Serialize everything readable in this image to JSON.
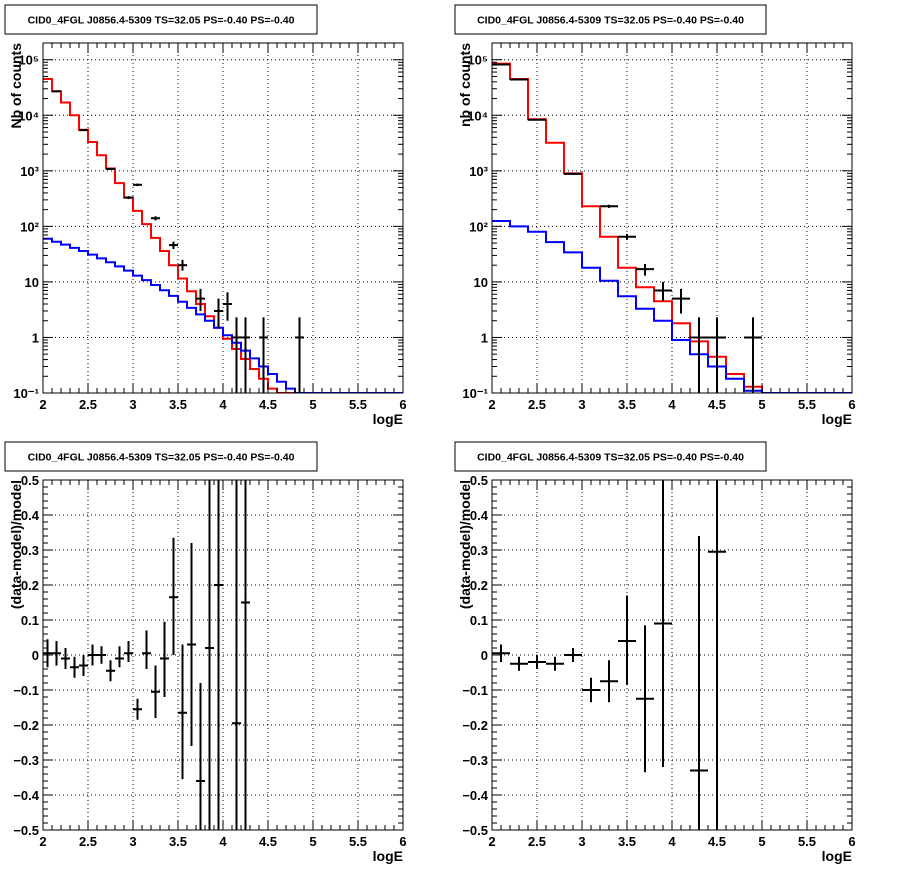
{
  "chart_data": [
    {
      "type": "histogram",
      "title": "CID0_4FGL J0856.4-5309 TS=32.05 PS=-0.40 PS=-0.40",
      "xlabel": "logE",
      "ylabel": "Nb of counts",
      "xlim": [
        2,
        6
      ],
      "ylim": [
        0.1,
        200000
      ],
      "yscale": "log",
      "grid": true,
      "xticks": [
        2,
        2.5,
        3,
        3.5,
        4,
        4.5,
        5,
        5.5,
        6
      ],
      "xtick_labels": [
        "2",
        "2.5",
        "3",
        "3.5",
        "4",
        "4.5",
        "5",
        "5.5",
        "6"
      ],
      "yticks": [
        0.1,
        1,
        10,
        100,
        1000,
        10000,
        100000
      ],
      "ytick_labels": [
        "10⁻¹",
        "1",
        "10",
        "10²",
        "10³",
        "10⁴",
        "10⁵"
      ],
      "bin_edges": [
        2.0,
        2.1,
        2.2,
        2.3,
        2.4,
        2.5,
        2.6,
        2.7,
        2.8,
        2.9,
        3.0,
        3.1,
        3.2,
        3.3,
        3.4,
        3.5,
        3.6,
        3.7,
        3.8,
        3.9,
        4.0,
        4.1,
        4.2,
        4.3,
        4.4,
        4.5,
        4.6,
        4.7,
        4.8,
        4.9,
        5.0,
        5.1,
        5.2,
        5.3,
        5.4,
        5.5,
        5.6,
        5.7,
        5.8,
        5.9,
        6.0
      ],
      "series": [
        {
          "color": "#ff0000",
          "style": "step",
          "values": [
            45000,
            27000,
            17000,
            10000,
            5500,
            3300,
            1900,
            1100,
            600,
            330,
            190,
            110,
            62,
            36,
            20,
            11.5,
            6.8,
            4,
            2.4,
            1.5,
            0.95,
            0.62,
            0.41,
            0.27,
            0.18,
            0.12,
            0.1,
            0.1,
            0.1,
            0.1,
            0.1,
            0.1,
            0.1,
            0.1,
            0.1,
            0.1,
            0.1,
            0.1,
            0.1,
            0.1
          ]
        },
        {
          "color": "#0000ff",
          "style": "step",
          "values": [
            60,
            53,
            47,
            41,
            36,
            31,
            26.5,
            22.5,
            19,
            16,
            13,
            10.8,
            8.8,
            7.1,
            5.6,
            4.4,
            3.4,
            2.6,
            2,
            1.5,
            1.1,
            0.8,
            0.58,
            0.42,
            0.3,
            0.22,
            0.16,
            0.12,
            0.1,
            0.1,
            0.1,
            0.1,
            0.1,
            0.1,
            0.1,
            0.1,
            0.1,
            0.1,
            0.1,
            0.1
          ]
        },
        {
          "color": "#000000",
          "style": "errorbar",
          "points": [
            {
              "x": 2.15,
              "y": 27000,
              "lo": 26500,
              "hi": 27500,
              "dx": 0.05
            },
            {
              "x": 2.45,
              "y": 5400,
              "lo": 5300,
              "hi": 5500,
              "dx": 0.05
            },
            {
              "x": 2.75,
              "y": 1080,
              "lo": 1040,
              "hi": 1120,
              "dx": 0.05
            },
            {
              "x": 2.95,
              "y": 330,
              "lo": 310,
              "hi": 350,
              "dx": 0.05
            },
            {
              "x": 3.05,
              "y": 560,
              "lo": 530,
              "hi": 590,
              "dx": 0.05
            },
            {
              "x": 3.25,
              "y": 140,
              "lo": 128,
              "hi": 152,
              "dx": 0.05
            },
            {
              "x": 3.45,
              "y": 46,
              "lo": 39,
              "hi": 53,
              "dx": 0.05
            },
            {
              "x": 3.55,
              "y": 20,
              "lo": 16,
              "hi": 25,
              "dx": 0.05
            },
            {
              "x": 3.75,
              "y": 5,
              "lo": 3,
              "hi": 7.5,
              "dx": 0.05
            },
            {
              "x": 3.95,
              "y": 3,
              "lo": 1.5,
              "hi": 5,
              "dx": 0.05
            },
            {
              "x": 4.05,
              "y": 4,
              "lo": 2,
              "hi": 6.5,
              "dx": 0.05
            },
            {
              "x": 4.15,
              "y": 1,
              "lo": 0.1,
              "hi": 2.3,
              "dx": 0.05
            },
            {
              "x": 4.25,
              "y": 1,
              "lo": 0.1,
              "hi": 2.3,
              "dx": 0.05
            },
            {
              "x": 4.45,
              "y": 1,
              "lo": 0.1,
              "hi": 2.3,
              "dx": 0.05
            },
            {
              "x": 4.85,
              "y": 1,
              "lo": 0.1,
              "hi": 2.3,
              "dx": 0.05
            }
          ]
        }
      ]
    },
    {
      "type": "histogram",
      "title": "CID0_4FGL J0856.4-5309 TS=32.05 PS=-0.40 PS=-0.40",
      "xlabel": "logE",
      "ylabel": "nb of counts",
      "xlim": [
        2,
        6
      ],
      "ylim": [
        0.1,
        200000
      ],
      "yscale": "log",
      "grid": true,
      "xticks": [
        2,
        2.5,
        3,
        3.5,
        4,
        4.5,
        5,
        5.5,
        6
      ],
      "xtick_labels": [
        "2",
        "2.5",
        "3",
        "3.5",
        "4",
        "4.5",
        "5",
        "5.5",
        "6"
      ],
      "yticks": [
        0.1,
        1,
        10,
        100,
        1000,
        10000,
        100000
      ],
      "ytick_labels": [
        "10⁻¹",
        "1",
        "10",
        "10²",
        "10³",
        "10⁴",
        "10⁵"
      ],
      "bin_edges": [
        2.0,
        2.2,
        2.4,
        2.6,
        2.8,
        3.0,
        3.2,
        3.4,
        3.6,
        3.8,
        4.0,
        4.2,
        4.4,
        4.6,
        4.8,
        5.0,
        5.2,
        5.4,
        5.6,
        5.8,
        6.0
      ],
      "series": [
        {
          "color": "#ff0000",
          "style": "step",
          "values": [
            85000,
            45000,
            8500,
            3200,
            900,
            230,
            65,
            18,
            8,
            4.5,
            1.8,
            0.85,
            0.45,
            0.22,
            0.13,
            0.1,
            0.1,
            0.1,
            0.1,
            0.1
          ]
        },
        {
          "color": "#0000ff",
          "style": "step",
          "values": [
            125,
            100,
            80,
            52,
            34,
            18,
            10.5,
            5.5,
            3.3,
            2,
            0.9,
            0.5,
            0.3,
            0.18,
            0.11,
            0.1,
            0.1,
            0.1,
            0.1,
            0.1
          ]
        },
        {
          "color": "#000000",
          "style": "errorbar",
          "points": [
            {
              "x": 2.1,
              "y": 82000,
              "lo": 81000,
              "hi": 83000,
              "dx": 0.1
            },
            {
              "x": 2.3,
              "y": 44000,
              "lo": 43500,
              "hi": 44500,
              "dx": 0.1
            },
            {
              "x": 2.5,
              "y": 8300,
              "lo": 8100,
              "hi": 8500,
              "dx": 0.1
            },
            {
              "x": 2.9,
              "y": 880,
              "lo": 850,
              "hi": 910,
              "dx": 0.1
            },
            {
              "x": 3.3,
              "y": 230,
              "lo": 215,
              "hi": 245,
              "dx": 0.1
            },
            {
              "x": 3.5,
              "y": 65,
              "lo": 57,
              "hi": 73,
              "dx": 0.1
            },
            {
              "x": 3.7,
              "y": 17,
              "lo": 13,
              "hi": 21,
              "dx": 0.1
            },
            {
              "x": 3.9,
              "y": 7,
              "lo": 4.5,
              "hi": 10,
              "dx": 0.1
            },
            {
              "x": 4.1,
              "y": 5,
              "lo": 2.7,
              "hi": 7.5,
              "dx": 0.1
            },
            {
              "x": 4.3,
              "y": 1,
              "lo": 0.1,
              "hi": 2.3,
              "dx": 0.1
            },
            {
              "x": 4.5,
              "y": 1,
              "lo": 0.1,
              "hi": 2.3,
              "dx": 0.1
            },
            {
              "x": 4.9,
              "y": 1,
              "lo": 0.1,
              "hi": 2.3,
              "dx": 0.1
            }
          ]
        }
      ]
    },
    {
      "type": "scatter",
      "title": "CID0_4FGL J0856.4-5309 TS=32.05 PS=-0.40 PS=-0.40",
      "xlabel": "logE",
      "ylabel": "(data-model)/model",
      "xlim": [
        2,
        6
      ],
      "ylim": [
        -0.5,
        0.5
      ],
      "yscale": "linear",
      "grid": true,
      "xticks": [
        2,
        2.5,
        3,
        3.5,
        4,
        4.5,
        5,
        5.5,
        6
      ],
      "xtick_labels": [
        "2",
        "2.5",
        "3",
        "3.5",
        "4",
        "4.5",
        "5",
        "5.5",
        "6"
      ],
      "yticks": [
        -0.5,
        -0.4,
        -0.3,
        -0.2,
        -0.1,
        0,
        0.1,
        0.2,
        0.3,
        0.4,
        0.5
      ],
      "ytick_labels": [
        "−0.5",
        "−0.4",
        "−0.3",
        "−0.2",
        "−0.1",
        "0",
        "0.1",
        "0.2",
        "0.3",
        "0.4",
        "0.5"
      ],
      "series": [
        {
          "color": "#000000",
          "style": "errorbar",
          "points": [
            {
              "x": 2.05,
              "y": 0.005,
              "lo": -0.035,
              "hi": 0.045,
              "dx": 0.05
            },
            {
              "x": 2.15,
              "y": 0.005,
              "lo": -0.03,
              "hi": 0.04,
              "dx": 0.05
            },
            {
              "x": 2.25,
              "y": -0.01,
              "lo": -0.04,
              "hi": 0.02,
              "dx": 0.05
            },
            {
              "x": 2.35,
              "y": -0.035,
              "lo": -0.065,
              "hi": -0.005,
              "dx": 0.05
            },
            {
              "x": 2.45,
              "y": -0.03,
              "lo": -0.06,
              "hi": 0.0,
              "dx": 0.05
            },
            {
              "x": 2.55,
              "y": 0.0,
              "lo": -0.03,
              "hi": 0.03,
              "dx": 0.05
            },
            {
              "x": 2.65,
              "y": 0.0,
              "lo": -0.025,
              "hi": 0.025,
              "dx": 0.05
            },
            {
              "x": 2.75,
              "y": -0.045,
              "lo": -0.075,
              "hi": -0.015,
              "dx": 0.05
            },
            {
              "x": 2.85,
              "y": -0.01,
              "lo": -0.035,
              "hi": 0.025,
              "dx": 0.05
            },
            {
              "x": 2.95,
              "y": 0.005,
              "lo": -0.02,
              "hi": 0.04,
              "dx": 0.05
            },
            {
              "x": 3.05,
              "y": -0.155,
              "lo": -0.185,
              "hi": -0.125,
              "dx": 0.05
            },
            {
              "x": 3.15,
              "y": 0.005,
              "lo": -0.04,
              "hi": 0.07,
              "dx": 0.05
            },
            {
              "x": 3.25,
              "y": -0.105,
              "lo": -0.18,
              "hi": -0.03,
              "dx": 0.05
            },
            {
              "x": 3.35,
              "y": -0.01,
              "lo": -0.12,
              "hi": 0.095,
              "dx": 0.05
            },
            {
              "x": 3.45,
              "y": 0.165,
              "lo": 0.0,
              "hi": 0.335,
              "dx": 0.05
            },
            {
              "x": 3.55,
              "y": -0.165,
              "lo": -0.355,
              "hi": 0.03,
              "dx": 0.05
            },
            {
              "x": 3.65,
              "y": 0.03,
              "lo": -0.26,
              "hi": 0.32,
              "dx": 0.05
            },
            {
              "x": 3.75,
              "y": -0.36,
              "lo": -0.5,
              "hi": -0.08,
              "dx": 0.05
            },
            {
              "x": 3.85,
              "y": 0.02,
              "lo": -0.5,
              "hi": 0.5,
              "dx": 0.05
            },
            {
              "x": 3.95,
              "y": 0.2,
              "lo": -0.5,
              "hi": 0.5,
              "dx": 0.05
            },
            {
              "x": 4.15,
              "y": -0.195,
              "lo": -0.5,
              "hi": 0.5,
              "dx": 0.05
            },
            {
              "x": 4.25,
              "y": 0.15,
              "lo": -0.5,
              "hi": 0.5,
              "dx": 0.05
            }
          ]
        }
      ]
    },
    {
      "type": "scatter",
      "title": "CID0_4FGL J0856.4-5309 TS=32.05 PS=-0.40 PS=-0.40",
      "xlabel": "logE",
      "ylabel": "(data-model)/model",
      "xlim": [
        2,
        6
      ],
      "ylim": [
        -0.5,
        0.5
      ],
      "yscale": "linear",
      "grid": true,
      "xticks": [
        2,
        2.5,
        3,
        3.5,
        4,
        4.5,
        5,
        5.5,
        6
      ],
      "xtick_labels": [
        "2",
        "2.5",
        "3",
        "3.5",
        "4",
        "4.5",
        "5",
        "5.5",
        "6"
      ],
      "yticks": [
        -0.5,
        -0.4,
        -0.3,
        -0.2,
        -0.1,
        0,
        0.1,
        0.2,
        0.3,
        0.4,
        0.5
      ],
      "ytick_labels": [
        "−0.5",
        "−0.4",
        "−0.3",
        "−0.2",
        "−0.1",
        "0",
        "0.1",
        "0.2",
        "0.3",
        "0.4",
        "0.5"
      ],
      "series": [
        {
          "color": "#000000",
          "style": "errorbar",
          "points": [
            {
              "x": 2.1,
              "y": 0.005,
              "lo": -0.02,
              "hi": 0.03,
              "dx": 0.1
            },
            {
              "x": 2.3,
              "y": -0.025,
              "lo": -0.045,
              "hi": -0.005,
              "dx": 0.1
            },
            {
              "x": 2.5,
              "y": -0.02,
              "lo": -0.04,
              "hi": 0.0,
              "dx": 0.1
            },
            {
              "x": 2.7,
              "y": -0.025,
              "lo": -0.045,
              "hi": -0.005,
              "dx": 0.1
            },
            {
              "x": 2.9,
              "y": 0.0,
              "lo": -0.02,
              "hi": 0.02,
              "dx": 0.1
            },
            {
              "x": 3.1,
              "y": -0.1,
              "lo": -0.135,
              "hi": -0.065,
              "dx": 0.1
            },
            {
              "x": 3.3,
              "y": -0.075,
              "lo": -0.135,
              "hi": -0.015,
              "dx": 0.1
            },
            {
              "x": 3.5,
              "y": 0.04,
              "lo": -0.085,
              "hi": 0.17,
              "dx": 0.1
            },
            {
              "x": 3.7,
              "y": -0.125,
              "lo": -0.335,
              "hi": 0.085,
              "dx": 0.1
            },
            {
              "x": 3.9,
              "y": 0.09,
              "lo": -0.32,
              "hi": 0.5,
              "dx": 0.1
            },
            {
              "x": 4.3,
              "y": -0.33,
              "lo": -0.5,
              "hi": 0.34,
              "dx": 0.1
            },
            {
              "x": 4.5,
              "y": 0.295,
              "lo": -0.5,
              "hi": 0.5,
              "dx": 0.1
            }
          ]
        }
      ]
    }
  ]
}
